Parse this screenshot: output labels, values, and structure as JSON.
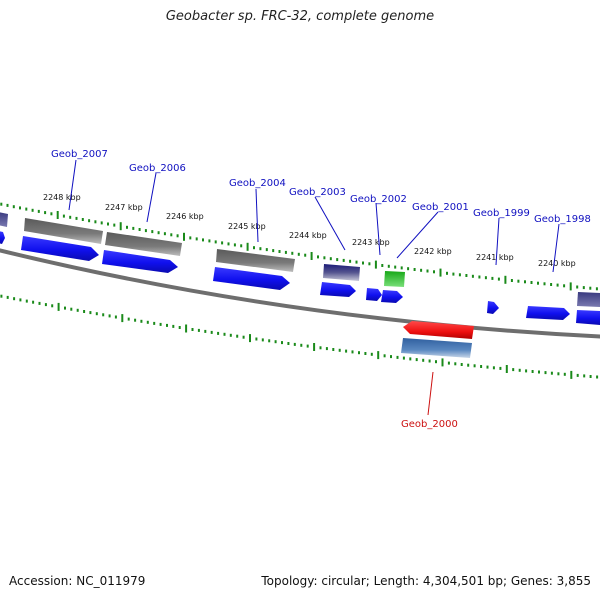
{
  "title": "Geobacter sp. FRC-32, complete genome",
  "accession": "Accession: NC_011979",
  "summary": "Topology: circular; Length: 4,304,501 bp; Genes: 3,855",
  "colors": {
    "backbone": "#808080",
    "tick": "#1a8a1a",
    "gene_forward": "#1515ee",
    "gene_rna": "#707070",
    "gene_special": "#e01010",
    "gene_label_blue": "#1010c0",
    "gene_label_red": "#cc1010"
  },
  "position_ticks": [
    "2248 kbp",
    "2247 kbp",
    "2246 kbp",
    "2245 kbp",
    "2244 kbp",
    "2243 kbp",
    "2242 kbp",
    "2241 kbp",
    "2240 kbp"
  ],
  "gene_labels": [
    {
      "name": "Geob_2007",
      "color": "blue"
    },
    {
      "name": "Geob_2006",
      "color": "blue"
    },
    {
      "name": "Geob_2004",
      "color": "blue"
    },
    {
      "name": "Geob_2003",
      "color": "blue"
    },
    {
      "name": "Geob_2002",
      "color": "blue"
    },
    {
      "name": "Geob_2001",
      "color": "blue"
    },
    {
      "name": "Geob_1999",
      "color": "blue"
    },
    {
      "name": "Geob_1998",
      "color": "blue"
    },
    {
      "name": "Geob_2000",
      "color": "red"
    }
  ]
}
